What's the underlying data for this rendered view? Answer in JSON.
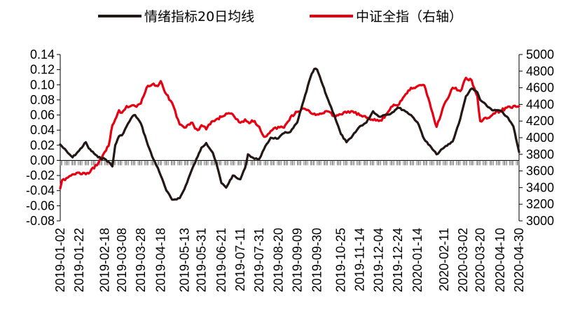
{
  "chart_data": {
    "type": "line",
    "legend": {
      "placement": "top-center"
    },
    "series": [
      {
        "name": "情绪指标20日均线",
        "axis": "left",
        "color": "#231815",
        "points": [
          [
            "2019-01-02",
            0.021
          ],
          [
            "2019-01-10",
            0.01
          ],
          [
            "2019-01-15",
            0.004
          ],
          [
            "2019-01-22",
            0.013
          ],
          [
            "2019-01-29",
            0.024
          ],
          [
            "2019-02-01",
            0.016
          ],
          [
            "2019-02-11",
            0.004
          ],
          [
            "2019-02-18",
            0.002
          ],
          [
            "2019-02-22",
            -0.002
          ],
          [
            "2019-02-26",
            -0.008
          ],
          [
            "2019-03-01",
            0.02
          ],
          [
            "2019-03-05",
            0.032
          ],
          [
            "2019-03-08",
            0.033
          ],
          [
            "2019-03-13",
            0.045
          ],
          [
            "2019-03-19",
            0.058
          ],
          [
            "2019-03-22",
            0.06
          ],
          [
            "2019-03-28",
            0.049
          ],
          [
            "2019-04-03",
            0.026
          ],
          [
            "2019-04-09",
            0.005
          ],
          [
            "2019-04-15",
            -0.01
          ],
          [
            "2019-04-18",
            -0.02
          ],
          [
            "2019-04-24",
            -0.04
          ],
          [
            "2019-04-30",
            -0.052
          ],
          [
            "2019-05-08",
            -0.05
          ],
          [
            "2019-05-13",
            -0.038
          ],
          [
            "2019-05-20",
            -0.015
          ],
          [
            "2019-05-27",
            0.005
          ],
          [
            "2019-05-31",
            0.017
          ],
          [
            "2019-06-05",
            0.023
          ],
          [
            "2019-06-12",
            0.01
          ],
          [
            "2019-06-17",
            -0.01
          ],
          [
            "2019-06-21",
            -0.03
          ],
          [
            "2019-06-26",
            -0.036
          ],
          [
            "2019-07-03",
            -0.02
          ],
          [
            "2019-07-08",
            -0.024
          ],
          [
            "2019-07-11",
            -0.025
          ],
          [
            "2019-07-16",
            -0.01
          ],
          [
            "2019-07-19",
            0.008
          ],
          [
            "2019-07-26",
            0.002
          ],
          [
            "2019-07-31",
            0.002
          ],
          [
            "2019-08-05",
            0.015
          ],
          [
            "2019-08-12",
            0.03
          ],
          [
            "2019-08-20",
            0.029
          ],
          [
            "2019-08-26",
            0.036
          ],
          [
            "2019-09-02",
            0.038
          ],
          [
            "2019-09-09",
            0.05
          ],
          [
            "2019-09-16",
            0.08
          ],
          [
            "2019-09-23",
            0.11
          ],
          [
            "2019-09-27",
            0.121
          ],
          [
            "2019-09-30",
            0.12
          ],
          [
            "2019-10-10",
            0.085
          ],
          [
            "2019-10-18",
            0.06
          ],
          [
            "2019-10-25",
            0.035
          ],
          [
            "2019-10-31",
            0.024
          ],
          [
            "2019-11-05",
            0.03
          ],
          [
            "2019-11-14",
            0.045
          ],
          [
            "2019-11-21",
            0.05
          ],
          [
            "2019-11-28",
            0.065
          ],
          [
            "2019-12-04",
            0.058
          ],
          [
            "2019-12-10",
            0.06
          ],
          [
            "2019-12-17",
            0.062
          ],
          [
            "2019-12-24",
            0.07
          ],
          [
            "2019-12-31",
            0.066
          ],
          [
            "2020-01-07",
            0.06
          ],
          [
            "2020-01-14",
            0.05
          ],
          [
            "2020-01-21",
            0.028
          ],
          [
            "2020-02-03",
            0.008
          ],
          [
            "2020-02-11",
            0.017
          ],
          [
            "2020-02-20",
            0.025
          ],
          [
            "2020-02-28",
            0.055
          ],
          [
            "2020-03-05",
            0.085
          ],
          [
            "2020-03-11",
            0.095
          ],
          [
            "2020-03-17",
            0.09
          ],
          [
            "2020-03-20",
            0.08
          ],
          [
            "2020-03-27",
            0.072
          ],
          [
            "2020-04-03",
            0.066
          ],
          [
            "2020-04-10",
            0.066
          ],
          [
            "2020-04-17",
            0.058
          ],
          [
            "2020-04-24",
            0.045
          ],
          [
            "2020-04-30",
            0.011
          ]
        ]
      },
      {
        "name": "中证全指（右轴）",
        "axis": "right",
        "color": "#e60012",
        "points": [
          [
            "2019-01-02",
            3390
          ],
          [
            "2019-01-04",
            3490
          ],
          [
            "2019-01-10",
            3520
          ],
          [
            "2019-01-15",
            3560
          ],
          [
            "2019-01-22",
            3580
          ],
          [
            "2019-01-29",
            3560
          ],
          [
            "2019-02-01",
            3570
          ],
          [
            "2019-02-11",
            3690
          ],
          [
            "2019-02-18",
            3830
          ],
          [
            "2019-02-22",
            3900
          ],
          [
            "2019-02-26",
            4150
          ],
          [
            "2019-03-01",
            4220
          ],
          [
            "2019-03-05",
            4330
          ],
          [
            "2019-03-08",
            4300
          ],
          [
            "2019-03-13",
            4380
          ],
          [
            "2019-03-19",
            4390
          ],
          [
            "2019-03-22",
            4380
          ],
          [
            "2019-03-28",
            4410
          ],
          [
            "2019-04-03",
            4600
          ],
          [
            "2019-04-09",
            4640
          ],
          [
            "2019-04-15",
            4620
          ],
          [
            "2019-04-18",
            4680
          ],
          [
            "2019-04-24",
            4520
          ],
          [
            "2019-04-30",
            4420
          ],
          [
            "2019-05-08",
            4160
          ],
          [
            "2019-05-13",
            4120
          ],
          [
            "2019-05-20",
            4180
          ],
          [
            "2019-05-27",
            4090
          ],
          [
            "2019-05-31",
            4150
          ],
          [
            "2019-06-05",
            4100
          ],
          [
            "2019-06-12",
            4200
          ],
          [
            "2019-06-17",
            4230
          ],
          [
            "2019-06-21",
            4250
          ],
          [
            "2019-06-26",
            4290
          ],
          [
            "2019-07-03",
            4280
          ],
          [
            "2019-07-08",
            4220
          ],
          [
            "2019-07-11",
            4180
          ],
          [
            "2019-07-16",
            4220
          ],
          [
            "2019-07-19",
            4190
          ],
          [
            "2019-07-26",
            4200
          ],
          [
            "2019-07-31",
            4130
          ],
          [
            "2019-08-05",
            4010
          ],
          [
            "2019-08-12",
            4080
          ],
          [
            "2019-08-20",
            4130
          ],
          [
            "2019-08-26",
            4120
          ],
          [
            "2019-09-02",
            4250
          ],
          [
            "2019-09-09",
            4310
          ],
          [
            "2019-09-16",
            4350
          ],
          [
            "2019-09-23",
            4300
          ],
          [
            "2019-09-27",
            4290
          ],
          [
            "2019-09-30",
            4280
          ],
          [
            "2019-10-10",
            4320
          ],
          [
            "2019-10-18",
            4260
          ],
          [
            "2019-10-25",
            4280
          ],
          [
            "2019-10-31",
            4300
          ],
          [
            "2019-11-05",
            4320
          ],
          [
            "2019-11-14",
            4270
          ],
          [
            "2019-11-21",
            4240
          ],
          [
            "2019-11-28",
            4210
          ],
          [
            "2019-12-04",
            4200
          ],
          [
            "2019-12-10",
            4240
          ],
          [
            "2019-12-17",
            4370
          ],
          [
            "2019-12-24",
            4390
          ],
          [
            "2019-12-31",
            4500
          ],
          [
            "2020-01-07",
            4600
          ],
          [
            "2020-01-14",
            4620
          ],
          [
            "2020-01-21",
            4630
          ],
          [
            "2020-02-03",
            4130
          ],
          [
            "2020-02-11",
            4400
          ],
          [
            "2020-02-20",
            4600
          ],
          [
            "2020-02-28",
            4560
          ],
          [
            "2020-03-05",
            4720
          ],
          [
            "2020-03-11",
            4690
          ],
          [
            "2020-03-17",
            4500
          ],
          [
            "2020-03-20",
            4200
          ],
          [
            "2020-03-27",
            4230
          ],
          [
            "2020-04-03",
            4290
          ],
          [
            "2020-04-10",
            4320
          ],
          [
            "2020-04-17",
            4360
          ],
          [
            "2020-04-24",
            4380
          ],
          [
            "2020-04-30",
            4380
          ]
        ]
      }
    ],
    "y_left": {
      "range": [
        -0.08,
        0.14
      ],
      "ticks": [
        "0.14",
        "0.12",
        "0.10",
        "0.08",
        "0.06",
        "0.04",
        "0.02",
        "0.00",
        "-0.02",
        "-0.04",
        "-0.06",
        "-0.08"
      ]
    },
    "y_right": {
      "range": [
        3000,
        5000
      ],
      "ticks": [
        "5000",
        "4800",
        "4600",
        "4400",
        "4200",
        "4000",
        "3800",
        "3600",
        "3400",
        "3200",
        "3000"
      ]
    },
    "x_axis": {
      "range": [
        "2019-01-02",
        "2020-04-30"
      ],
      "ticks": [
        "2019-01-02",
        "2019-01-22",
        "2019-02-18",
        "2019-03-08",
        "2019-03-28",
        "2019-04-18",
        "2019-05-13",
        "2019-05-31",
        "2019-06-21",
        "2019-07-11",
        "2019-07-31",
        "2019-08-20",
        "2019-09-09",
        "2019-09-30",
        "2019-10-25",
        "2019-11-14",
        "2019-12-04",
        "2019-12-24",
        "2020-01-14",
        "2020-02-11",
        "2020-03-02",
        "2020-03-20",
        "2020-04-10",
        "2020-04-30"
      ]
    },
    "grid": false
  }
}
